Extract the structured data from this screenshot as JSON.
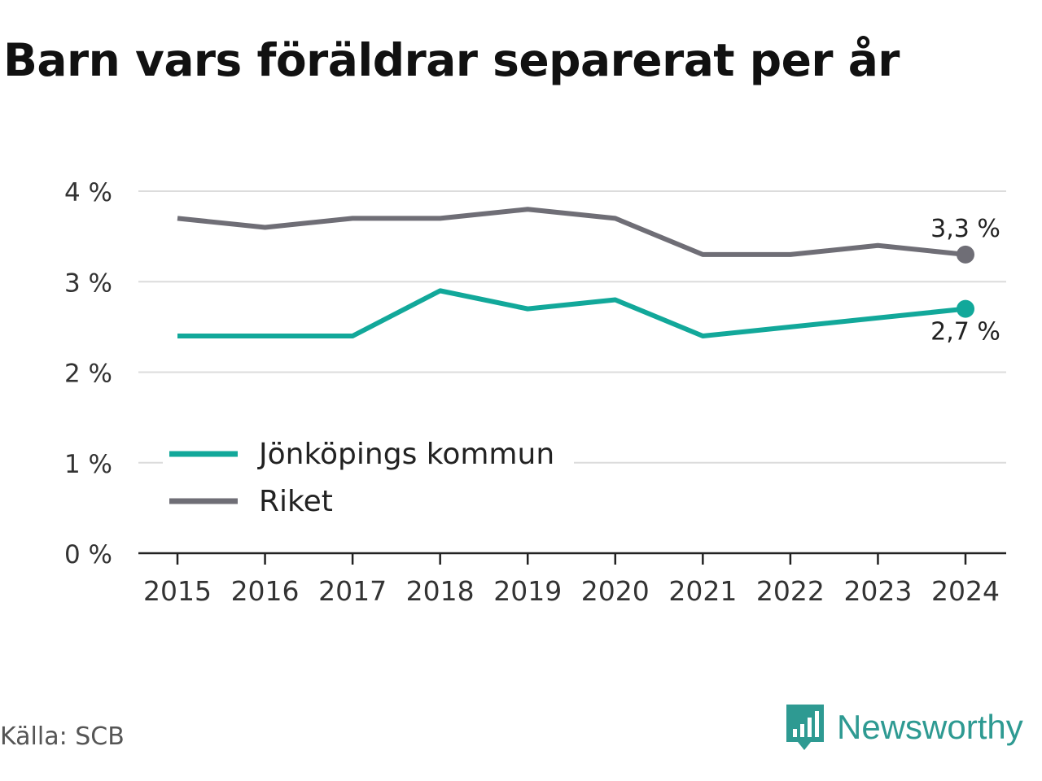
{
  "chart_data": {
    "type": "line",
    "title": "Barn vars föräldrar separerat per år",
    "x": [
      "2015",
      "2016",
      "2017",
      "2018",
      "2019",
      "2020",
      "2021",
      "2022",
      "2023",
      "2024"
    ],
    "ylim": [
      0,
      4
    ],
    "yticks": [
      {
        "value": 0,
        "label": "0 %"
      },
      {
        "value": 1,
        "label": "1 %"
      },
      {
        "value": 2,
        "label": "2 %"
      },
      {
        "value": 3,
        "label": "3 %"
      },
      {
        "value": 4,
        "label": "4 %"
      }
    ],
    "grid": true,
    "legend_position": "bottom-left",
    "series": [
      {
        "name": "Jönköpings kommun",
        "color": "#12a89a",
        "values": [
          2.4,
          2.4,
          2.4,
          2.9,
          2.7,
          2.8,
          2.4,
          2.5,
          2.6,
          2.7
        ],
        "end_label": "2,7 %"
      },
      {
        "name": "Riket",
        "color": "#6f6e76",
        "values": [
          3.7,
          3.6,
          3.7,
          3.7,
          3.8,
          3.7,
          3.3,
          3.3,
          3.4,
          3.3
        ],
        "end_label": "3,3 %"
      }
    ]
  },
  "footer": {
    "source": "Källa: SCB",
    "brand": "Newsworthy",
    "brand_icon": "newsworthy-logo-icon",
    "brand_color": "#2e9a92"
  }
}
